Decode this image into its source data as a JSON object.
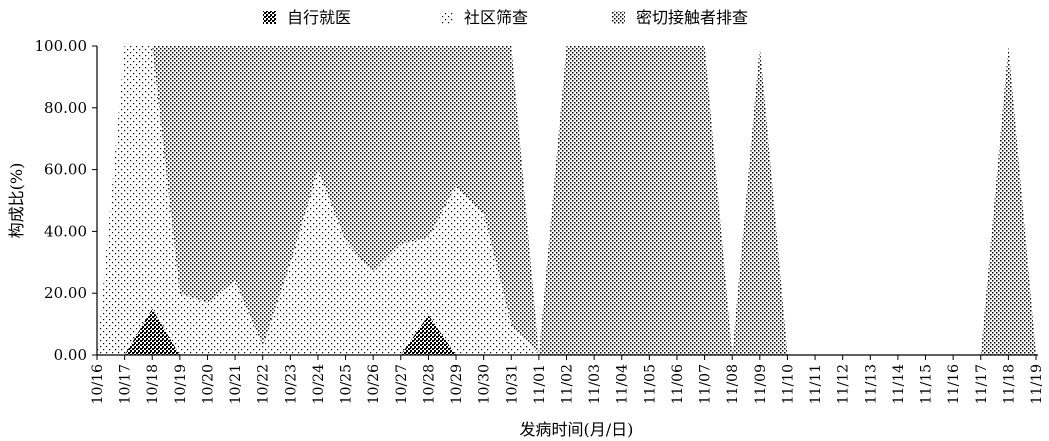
{
  "chart_data": {
    "type": "area",
    "stacked": true,
    "percent_stacked": true,
    "ylabel": "构成比(%)",
    "xlabel": "发病时间(月/日)",
    "ylim": [
      0,
      100
    ],
    "y_ticks": [
      "0.00",
      "20.00",
      "40.00",
      "60.00",
      "80.00",
      "100.00"
    ],
    "categories": [
      "10/16",
      "10/17",
      "10/18",
      "10/19",
      "10/20",
      "10/21",
      "10/22",
      "10/23",
      "10/24",
      "10/25",
      "10/26",
      "10/27",
      "10/28",
      "10/29",
      "10/30",
      "10/31",
      "11/01",
      "11/02",
      "11/03",
      "11/04",
      "11/05",
      "11/06",
      "11/07",
      "11/08",
      "11/09",
      "11/10",
      "11/11",
      "11/12",
      "11/13",
      "11/14",
      "11/15",
      "11/16",
      "11/17",
      "11/18",
      "11/19"
    ],
    "legend_position": "top",
    "series": [
      {
        "name": "自行就医",
        "color": "#000000",
        "pattern": "dense-check",
        "values": [
          0,
          0,
          15,
          0,
          0,
          0,
          0,
          0,
          0,
          0,
          0,
          0,
          13,
          0,
          0,
          0,
          0,
          0,
          0,
          0,
          0,
          0,
          0,
          0,
          0,
          0,
          0,
          0,
          0,
          0,
          0,
          0,
          0,
          0,
          0
        ]
      },
      {
        "name": "社区筛查",
        "color": "#000000",
        "pattern": "sparse-dots",
        "values": [
          0,
          100,
          85,
          20,
          17,
          24,
          3,
          30,
          60,
          37,
          27,
          36,
          25,
          55,
          46,
          10,
          0,
          0,
          0,
          0,
          0,
          0,
          0,
          0,
          0,
          0,
          0,
          0,
          0,
          0,
          0,
          0,
          0,
          0,
          0
        ]
      },
      {
        "name": "密切接触者排查",
        "color": "#000000",
        "pattern": "check",
        "values": [
          0,
          0,
          0,
          80,
          83,
          76,
          97,
          70,
          40,
          63,
          73,
          64,
          62,
          45,
          54,
          90,
          0,
          100,
          100,
          100,
          100,
          100,
          100,
          0,
          100,
          0,
          0,
          0,
          0,
          0,
          0,
          0,
          0,
          100,
          0
        ]
      }
    ]
  }
}
